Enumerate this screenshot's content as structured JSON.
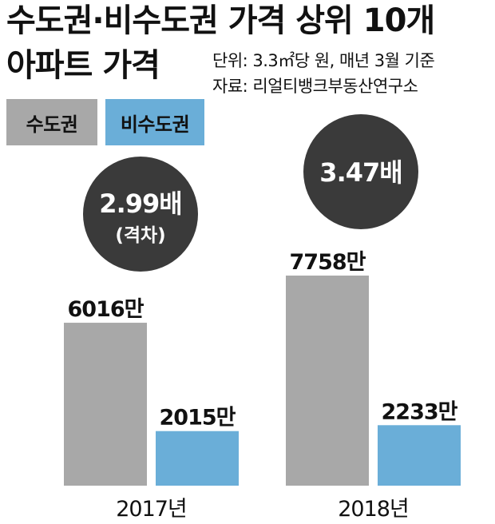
{
  "title": {
    "line1": "수도권·비수도권 가격 상위 10개",
    "line2": "아파트 가격"
  },
  "notes": {
    "unit": "단위: 3.3㎡당 원, 매년 3월 기준",
    "source": "자료: 리얼티뱅크부동산연구소"
  },
  "colors": {
    "capital": "#a8a8a8",
    "non_capital": "#6aaed8",
    "ratio_circle": "#3a3a3a",
    "ratio_text": "#ffffff"
  },
  "chart_data": {
    "type": "bar",
    "categories": [
      "2017년",
      "2018년"
    ],
    "series": [
      {
        "name": "수도권",
        "values": [
          6016,
          7758
        ],
        "labels": [
          "6016만",
          "7758만"
        ]
      },
      {
        "name": "비수도권",
        "values": [
          2015,
          2233
        ],
        "labels": [
          "2015만",
          "2233만"
        ]
      }
    ],
    "ratios": [
      {
        "value": "2.99배",
        "note": "(격차)"
      },
      {
        "value": "3.47배",
        "note": ""
      }
    ],
    "unit": "만원",
    "legend": "top-left",
    "grid": false
  }
}
